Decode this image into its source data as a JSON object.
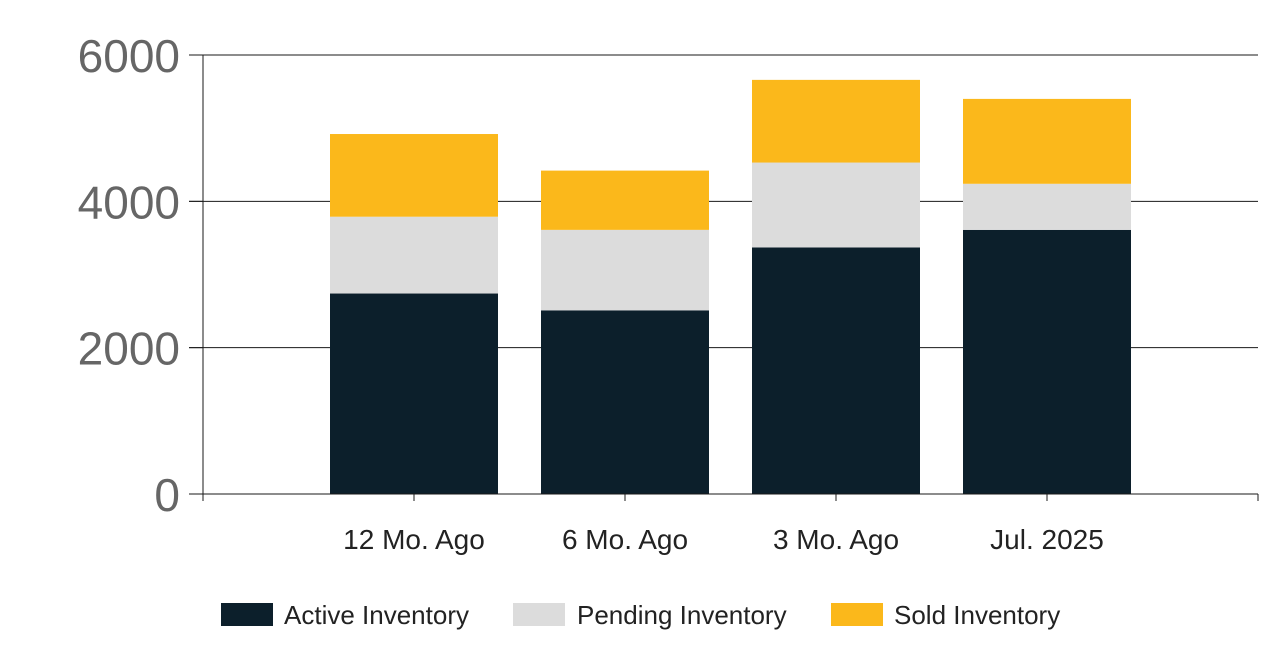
{
  "chart_data": {
    "type": "bar",
    "stacked": true,
    "categories": [
      "12 Mo. Ago",
      "6 Mo. Ago",
      "3 Mo. Ago",
      "Jul. 2025"
    ],
    "series": [
      {
        "name": "Active Inventory",
        "values": [
          2740,
          2510,
          3370,
          3610
        ],
        "color": "#0c1f2b"
      },
      {
        "name": "Pending Inventory",
        "values": [
          1050,
          1100,
          1160,
          630
        ],
        "color": "#dcdcdc"
      },
      {
        "name": "Sold Inventory",
        "values": [
          1130,
          810,
          1130,
          1160
        ],
        "color": "#fbb81b"
      }
    ],
    "yticks": [
      "0",
      "2000",
      "4000",
      "6000"
    ],
    "ylim": [
      0,
      6000
    ],
    "grid": true,
    "legend_position": "bottom",
    "title": "",
    "xlabel": "",
    "ylabel": ""
  }
}
